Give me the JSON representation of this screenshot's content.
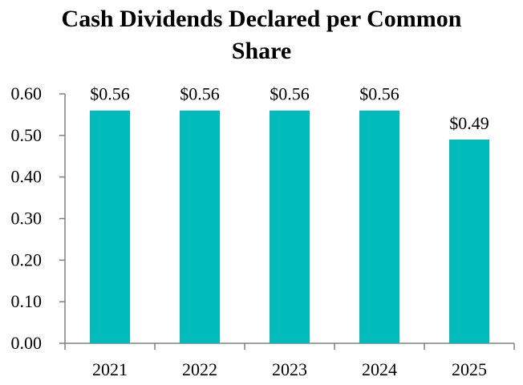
{
  "chart_data": {
    "type": "bar",
    "title": "Cash Dividends Declared per Common Share",
    "title_lines": [
      "Cash Dividends Declared per Common",
      "Share"
    ],
    "categories": [
      "2021",
      "2022",
      "2023",
      "2024",
      "2025"
    ],
    "values": [
      0.56,
      0.56,
      0.56,
      0.56,
      0.49
    ],
    "data_labels": [
      "$0.56",
      "$0.56",
      "$0.56",
      "$0.56",
      "$0.49"
    ],
    "xlabel": "",
    "ylabel": "",
    "ylim": [
      0,
      0.6
    ],
    "yticks": [
      "0.00",
      "0.10",
      "0.20",
      "0.30",
      "0.40",
      "0.50",
      "0.60"
    ],
    "ytick_values": [
      0,
      0.1,
      0.2,
      0.3,
      0.4,
      0.5,
      0.6
    ],
    "grid": false,
    "legend": "none",
    "bar_color": "#00BBBB",
    "axis_color": "#808080"
  }
}
